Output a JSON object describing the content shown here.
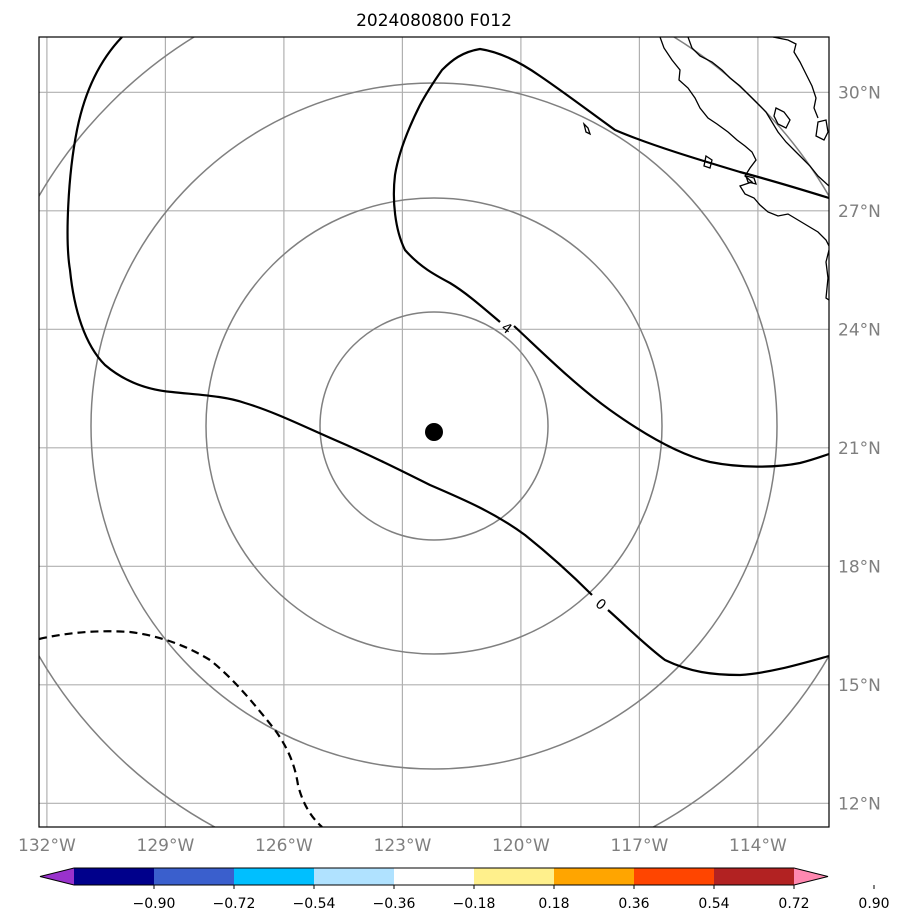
{
  "title": "2024080800 F012",
  "map": {
    "lon_range": [
      -132.2,
      -112.2
    ],
    "lat_range": [
      11.4,
      31.4
    ],
    "meridians": [
      -132,
      -129,
      -126,
      -123,
      -120,
      -117,
      -114
    ],
    "parallels": [
      12,
      15,
      18,
      21,
      24,
      27,
      30
    ],
    "lon_labels": [
      "132°W",
      "129°W",
      "126°W",
      "123°W",
      "120°W",
      "117°W",
      "114°W"
    ],
    "lat_labels": [
      "12°N",
      "15°N",
      "18°N",
      "21°N",
      "24°N",
      "27°N",
      "30°N"
    ],
    "center_marker": {
      "lon": -122.2,
      "lat": 21.4
    },
    "range_rings": {
      "count": 4,
      "color": "#808080"
    },
    "contours": [
      {
        "level": "4",
        "style": "solid",
        "color": "#000000"
      },
      {
        "level": "0",
        "style": "solid",
        "color": "#000000"
      },
      {
        "level": "",
        "style": "dashed",
        "color": "#000000"
      }
    ]
  },
  "colorbar": {
    "ticks": [
      "−0.90",
      "−0.72",
      "−0.54",
      "−0.36",
      "−0.18",
      "0.18",
      "0.36",
      "0.54",
      "0.72",
      "0.90"
    ],
    "colors": [
      "#9932cc",
      "#00008b",
      "#3a5fcd",
      "#00bfff",
      "#b0e2ff",
      "#ffffff",
      "#fff08c",
      "#ffa500",
      "#ff4500",
      "#b22222",
      "#ff88b0"
    ],
    "extend": "both"
  }
}
